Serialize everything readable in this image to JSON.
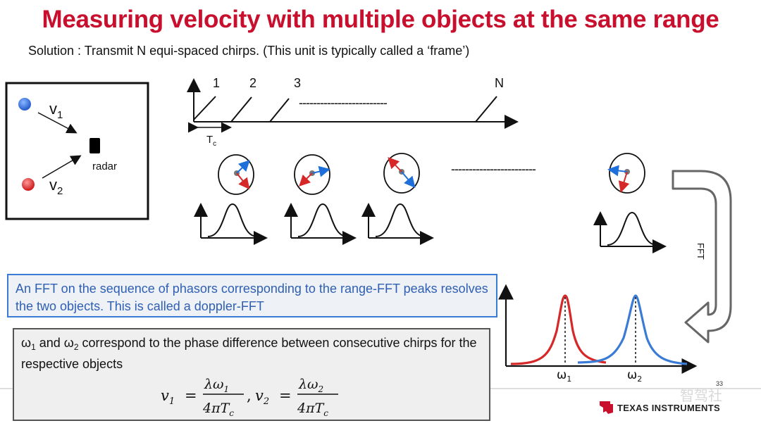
{
  "title": "Measuring velocity with multiple objects at the same range",
  "subtitle": "Solution : Transmit N equi-spaced chirps. (This unit is typically called a ‘frame’)",
  "scene": {
    "v1_label": "v",
    "v1_sub": "1",
    "v2_label": "v",
    "v2_sub": "2",
    "radar_label": "radar"
  },
  "chirps": {
    "labels": [
      "1",
      "2",
      "3",
      "N"
    ],
    "dashes": "-------------------------",
    "tc_label": "T",
    "tc_sub": "c"
  },
  "phasors": {
    "dashes": "------------------------"
  },
  "fft_arrow_label": "FFT",
  "fft_box_text": "An FFT on the sequence of phasors corresponding to the range-FFT peaks resolves the two objects. This is called a doppler-FFT",
  "eq_box": {
    "w1": "ω",
    "w1_sub": "1",
    "mid": " and ω",
    "w2_sub": "2",
    "rest": " correspond to the phase difference between consecutive chirps for the respective objects"
  },
  "formula": {
    "v1": "v",
    "v1_sub": "1",
    "num1": "λω",
    "num1_sub": "1",
    "den1": "4πT",
    "den_sub": "c",
    "v2": "v",
    "v2_sub": "2",
    "num2": "λω",
    "num2_sub": "2",
    "den2": "4πT"
  },
  "doppler_plot": {
    "w1_label": "ω",
    "w1_sub": "1",
    "w2_label": "ω",
    "w2_sub": "2"
  },
  "footer": {
    "brand": "Texas Instruments",
    "page_number": "33",
    "watermark": "智驾社"
  },
  "colors": {
    "title_red": "#c8102e",
    "blue": "#3a7bd5",
    "red": "#d62828"
  }
}
